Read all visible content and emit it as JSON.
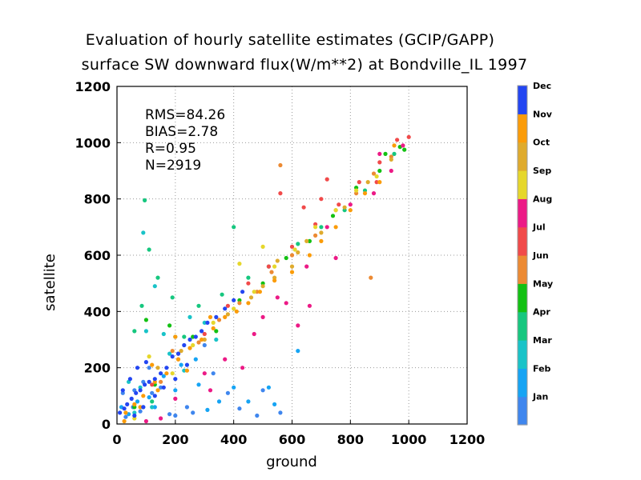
{
  "chart_data": {
    "type": "scatter",
    "title": "Evaluation of hourly satellite estimates (GCIP/GAPP)",
    "subtitle": "surface SW downward flux(W/m**2) at Bondville_IL 1997",
    "xlabel": "ground",
    "ylabel": "satellite",
    "xlim": [
      0,
      1200
    ],
    "ylim": [
      0,
      1200
    ],
    "xticks": [
      "0",
      "200",
      "400",
      "600",
      "800",
      "1000",
      "1200"
    ],
    "yticks": [
      "0",
      "200",
      "400",
      "600",
      "800",
      "1000",
      "1200"
    ],
    "grid": true,
    "stats": [
      "RMS=84.26",
      "BIAS=2.78",
      "R=0.95",
      "N=2919"
    ],
    "colorbar": {
      "placement": "right",
      "labels": [
        "Jan",
        "Feb",
        "Mar",
        "Apr",
        "May",
        "Jun",
        "Jul",
        "Aug",
        "Sep",
        "Oct",
        "Nov",
        "Dec"
      ],
      "colors": [
        "#3f86ee",
        "#16a4f4",
        "#19c3c8",
        "#16c77f",
        "#13c113",
        "#ec8a33",
        "#f14a4a",
        "#ec1a86",
        "#e6d72b",
        "#dfab2d",
        "#fb9c09",
        "#2346f2"
      ]
    },
    "series": [
      {
        "month": "Jan",
        "points": [
          [
            30,
            25
          ],
          [
            55,
            60
          ],
          [
            80,
            45
          ],
          [
            120,
            110
          ],
          [
            150,
            130
          ],
          [
            200,
            30
          ],
          [
            260,
            40
          ],
          [
            420,
            55
          ],
          [
            480,
            30
          ],
          [
            560,
            40
          ],
          [
            20,
            110
          ],
          [
            90,
            150
          ],
          [
            330,
            180
          ],
          [
            380,
            110
          ],
          [
            500,
            120
          ],
          [
            300,
            280
          ],
          [
            240,
            60
          ],
          [
            180,
            35
          ],
          [
            60,
            120
          ],
          [
            110,
            200
          ]
        ]
      },
      {
        "month": "Feb",
        "points": [
          [
            40,
            35
          ],
          [
            70,
            80
          ],
          [
            110,
            95
          ],
          [
            160,
            170
          ],
          [
            220,
            210
          ],
          [
            270,
            230
          ],
          [
            310,
            50
          ],
          [
            350,
            80
          ],
          [
            450,
            80
          ],
          [
            520,
            130
          ],
          [
            540,
            70
          ],
          [
            400,
            130
          ],
          [
            620,
            260
          ],
          [
            130,
            60
          ],
          [
            90,
            60
          ],
          [
            200,
            120
          ],
          [
            280,
            140
          ],
          [
            15,
            60
          ]
        ]
      },
      {
        "month": "Mar",
        "points": [
          [
            90,
            680
          ],
          [
            100,
            330
          ],
          [
            80,
            130
          ],
          [
            160,
            320
          ],
          [
            200,
            310
          ],
          [
            130,
            490
          ],
          [
            250,
            380
          ],
          [
            300,
            360
          ],
          [
            60,
            40
          ],
          [
            120,
            60
          ],
          [
            40,
            150
          ],
          [
            340,
            300
          ],
          [
            180,
            250
          ],
          [
            230,
            190
          ]
        ]
      },
      {
        "month": "Apr",
        "points": [
          [
            95,
            795
          ],
          [
            85,
            420
          ],
          [
            110,
            620
          ],
          [
            140,
            520
          ],
          [
            190,
            450
          ],
          [
            280,
            420
          ],
          [
            360,
            460
          ],
          [
            450,
            520
          ],
          [
            520,
            560
          ],
          [
            620,
            640
          ],
          [
            700,
            700
          ],
          [
            780,
            760
          ],
          [
            850,
            830
          ],
          [
            950,
            960
          ],
          [
            120,
            80
          ],
          [
            60,
            330
          ],
          [
            230,
            310
          ],
          [
            400,
            700
          ]
        ]
      },
      {
        "month": "May",
        "points": [
          [
            100,
            370
          ],
          [
            180,
            350
          ],
          [
            260,
            310
          ],
          [
            340,
            330
          ],
          [
            420,
            440
          ],
          [
            500,
            500
          ],
          [
            580,
            590
          ],
          [
            660,
            650
          ],
          [
            740,
            740
          ],
          [
            820,
            840
          ],
          [
            900,
            900
          ],
          [
            985,
            975
          ],
          [
            970,
            985
          ],
          [
            920,
            960
          ],
          [
            130,
            140
          ],
          [
            60,
            60
          ]
        ]
      },
      {
        "month": "Jun",
        "points": [
          [
            150,
            150
          ],
          [
            210,
            230
          ],
          [
            280,
            290
          ],
          [
            350,
            370
          ],
          [
            420,
            430
          ],
          [
            480,
            470
          ],
          [
            530,
            540
          ],
          [
            600,
            600
          ],
          [
            680,
            670
          ],
          [
            750,
            760
          ],
          [
            820,
            820
          ],
          [
            880,
            890
          ],
          [
            940,
            950
          ],
          [
            560,
            920
          ],
          [
            870,
            520
          ],
          [
            190,
            260
          ]
        ]
      },
      {
        "month": "Jul",
        "points": [
          [
            120,
            140
          ],
          [
            210,
            250
          ],
          [
            300,
            320
          ],
          [
            380,
            420
          ],
          [
            450,
            500
          ],
          [
            520,
            560
          ],
          [
            600,
            630
          ],
          [
            680,
            710
          ],
          [
            760,
            780
          ],
          [
            830,
            860
          ],
          [
            900,
            930
          ],
          [
            960,
            1010
          ],
          [
            1000,
            1020
          ],
          [
            640,
            770
          ],
          [
            720,
            870
          ],
          [
            560,
            820
          ],
          [
            700,
            800
          ],
          [
            890,
            860
          ]
        ]
      },
      {
        "month": "Aug",
        "points": [
          [
            100,
            10
          ],
          [
            150,
            20
          ],
          [
            200,
            90
          ],
          [
            300,
            180
          ],
          [
            370,
            230
          ],
          [
            430,
            200
          ],
          [
            470,
            320
          ],
          [
            500,
            380
          ],
          [
            580,
            430
          ],
          [
            650,
            560
          ],
          [
            720,
            700
          ],
          [
            800,
            780
          ],
          [
            880,
            820
          ],
          [
            940,
            900
          ],
          [
            980,
            990
          ],
          [
            750,
            590
          ],
          [
            620,
            350
          ],
          [
            550,
            450
          ],
          [
            320,
            120
          ],
          [
            660,
            420
          ],
          [
            900,
            960
          ]
        ]
      },
      {
        "month": "Sep",
        "points": [
          [
            110,
            240
          ],
          [
            190,
            180
          ],
          [
            260,
            280
          ],
          [
            330,
            360
          ],
          [
            400,
            410
          ],
          [
            470,
            470
          ],
          [
            540,
            560
          ],
          [
            610,
            620
          ],
          [
            680,
            700
          ],
          [
            750,
            760
          ],
          [
            820,
            830
          ],
          [
            890,
            880
          ],
          [
            60,
            20
          ],
          [
            420,
            570
          ],
          [
            500,
            630
          ]
        ]
      },
      {
        "month": "Oct",
        "points": [
          [
            140,
            200
          ],
          [
            220,
            260
          ],
          [
            300,
            300
          ],
          [
            380,
            390
          ],
          [
            460,
            450
          ],
          [
            540,
            520
          ],
          [
            620,
            610
          ],
          [
            700,
            680
          ],
          [
            780,
            770
          ],
          [
            860,
            860
          ],
          [
            940,
            940
          ],
          [
            600,
            560
          ],
          [
            650,
            650
          ],
          [
            500,
            490
          ],
          [
            550,
            580
          ]
        ]
      },
      {
        "month": "Nov",
        "points": [
          [
            30,
            40
          ],
          [
            60,
            70
          ],
          [
            90,
            100
          ],
          [
            130,
            150
          ],
          [
            170,
            180
          ],
          [
            210,
            230
          ],
          [
            250,
            270
          ],
          [
            290,
            300
          ],
          [
            330,
            340
          ],
          [
            370,
            380
          ],
          [
            410,
            400
          ],
          [
            450,
            430
          ],
          [
            490,
            470
          ],
          [
            540,
            510
          ],
          [
            600,
            540
          ],
          [
            660,
            600
          ],
          [
            700,
            650
          ],
          [
            750,
            700
          ],
          [
            800,
            760
          ],
          [
            850,
            820
          ],
          [
            900,
            860
          ],
          [
            950,
            990
          ],
          [
            25,
            10
          ],
          [
            80,
            60
          ],
          [
            140,
            120
          ],
          [
            240,
            190
          ],
          [
            120,
            210
          ],
          [
            200,
            310
          ],
          [
            320,
            380
          ]
        ]
      },
      {
        "month": "Dec",
        "points": [
          [
            10,
            40
          ],
          [
            25,
            55
          ],
          [
            35,
            70
          ],
          [
            50,
            90
          ],
          [
            65,
            110
          ],
          [
            80,
            120
          ],
          [
            95,
            140
          ],
          [
            110,
            150
          ],
          [
            130,
            160
          ],
          [
            150,
            180
          ],
          [
            170,
            200
          ],
          [
            190,
            240
          ],
          [
            210,
            250
          ],
          [
            230,
            280
          ],
          [
            250,
            300
          ],
          [
            270,
            310
          ],
          [
            290,
            330
          ],
          [
            310,
            360
          ],
          [
            340,
            380
          ],
          [
            370,
            410
          ],
          [
            400,
            440
          ],
          [
            430,
            470
          ],
          [
            20,
            120
          ],
          [
            45,
            160
          ],
          [
            70,
            200
          ],
          [
            100,
            220
          ],
          [
            60,
            30
          ],
          [
            90,
            60
          ],
          [
            130,
            100
          ],
          [
            160,
            130
          ],
          [
            200,
            160
          ],
          [
            240,
            210
          ]
        ]
      }
    ]
  }
}
